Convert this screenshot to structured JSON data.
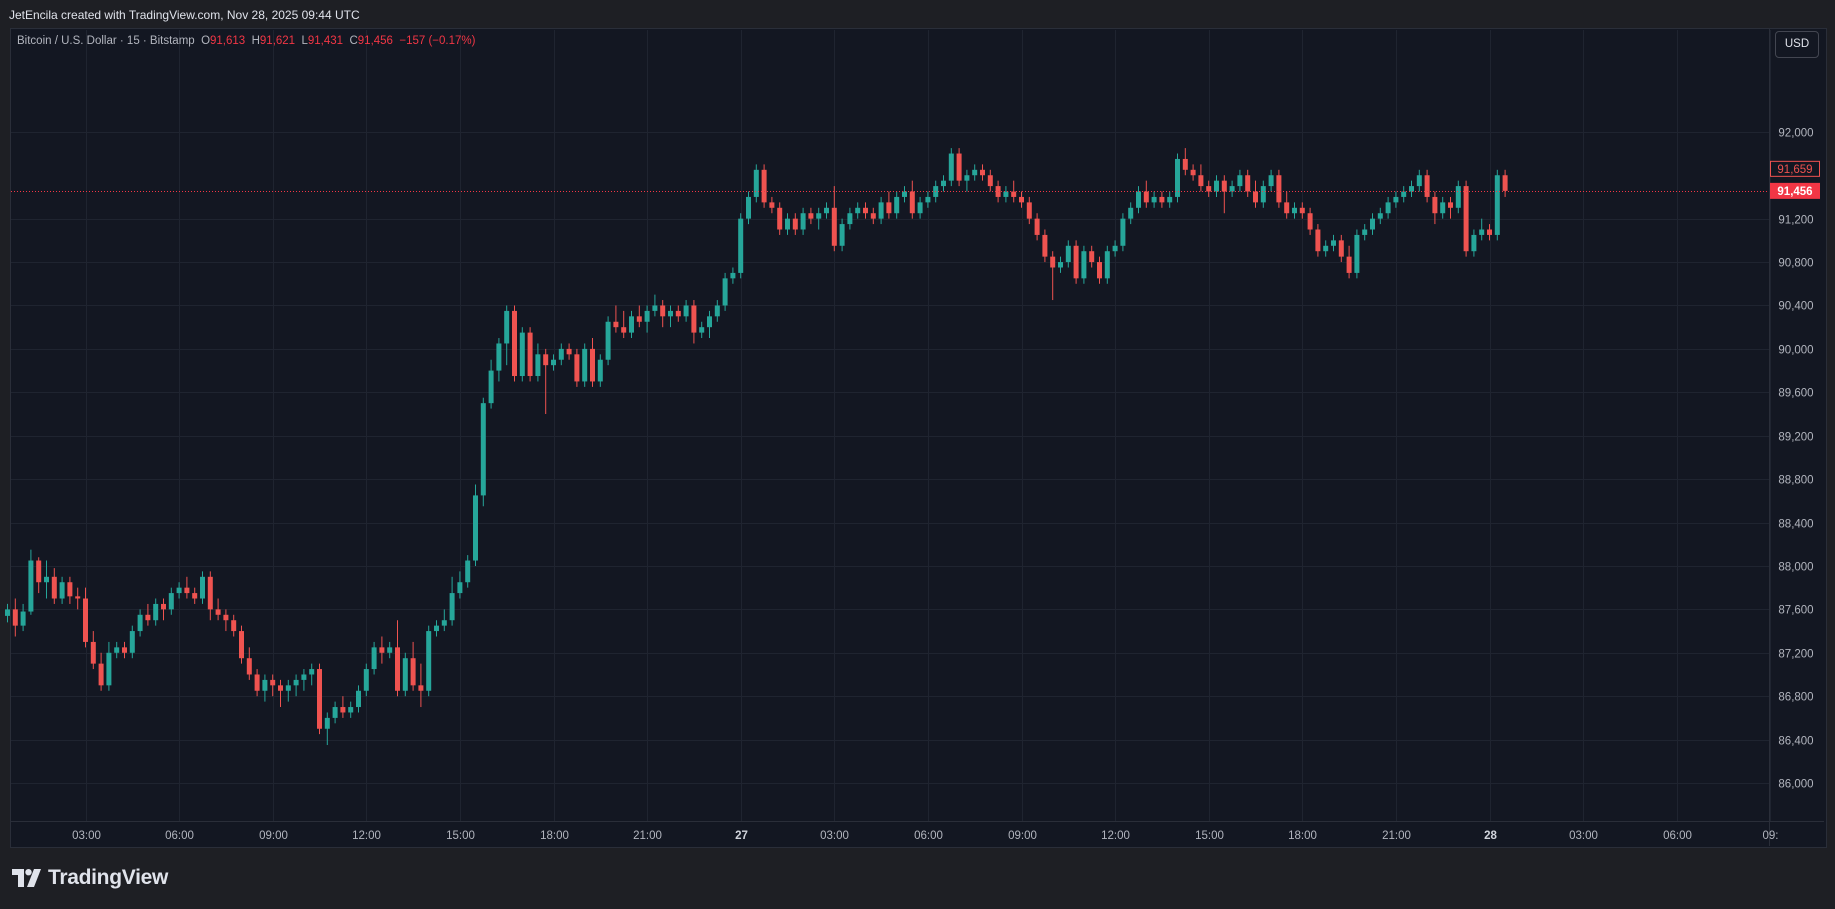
{
  "header": {
    "credit": "JetEncila created with TradingView.com, Nov 28, 2025 09:44 UTC"
  },
  "legend": {
    "symbol": "Bitcoin / U.S. Dollar · 15 · Bitstamp",
    "o_label": "O",
    "o_value": "91,613",
    "h_label": "H",
    "h_value": "91,621",
    "l_label": "L",
    "l_value": "91,431",
    "c_label": "C",
    "c_value": "91,456",
    "change": "−157 (−0.17%)"
  },
  "currency_button": "USD",
  "brand": {
    "name": "TradingView",
    "icon": "tradingview-logo-icon"
  },
  "colors": {
    "up": "#26a69a",
    "down": "#ef5350",
    "background": "#131722",
    "grid": "#1f2430",
    "last_price_bg": "#f23645"
  },
  "chart_data": {
    "type": "candlestick",
    "interval": "15",
    "ylim": [
      85650,
      92800
    ],
    "yticks": [
      "86,000",
      "86,400",
      "86,800",
      "87,200",
      "87,600",
      "88,000",
      "88,400",
      "88,800",
      "89,200",
      "89,600",
      "90,000",
      "90,400",
      "90,800",
      "91,200",
      "92,000"
    ],
    "xticks": [
      {
        "label": "03:00",
        "hours": 3
      },
      {
        "label": "06:00",
        "hours": 6
      },
      {
        "label": "09:00",
        "hours": 9
      },
      {
        "label": "12:00",
        "hours": 12
      },
      {
        "label": "15:00",
        "hours": 15
      },
      {
        "label": "18:00",
        "hours": 18
      },
      {
        "label": "21:00",
        "hours": 21
      },
      {
        "label": "27",
        "hours": 24,
        "day": true
      },
      {
        "label": "03:00",
        "hours": 27
      },
      {
        "label": "06:00",
        "hours": 30
      },
      {
        "label": "09:00",
        "hours": 33
      },
      {
        "label": "12:00",
        "hours": 36
      },
      {
        "label": "15:00",
        "hours": 39
      },
      {
        "label": "18:00",
        "hours": 42
      },
      {
        "label": "21:00",
        "hours": 45
      },
      {
        "label": "28",
        "hours": 48,
        "day": true
      },
      {
        "label": "03:00",
        "hours": 51
      },
      {
        "label": "06:00",
        "hours": 54
      },
      {
        "label": "09:",
        "hours": 57
      }
    ],
    "price_labels": [
      {
        "value": "91,659",
        "price": 91659,
        "style": "outline"
      },
      {
        "value": "91,456",
        "price": 91456,
        "style": "filled"
      }
    ],
    "last_price": 91456,
    "candle_interval_hours": 0.25,
    "series_start_hours": 0.5,
    "candles": [
      [
        87540,
        87650,
        87480,
        87600
      ],
      [
        87600,
        87700,
        87350,
        87450
      ],
      [
        87450,
        87650,
        87400,
        87580
      ],
      [
        87580,
        88150,
        87550,
        88050
      ],
      [
        88050,
        88080,
        87750,
        87850
      ],
      [
        87850,
        88050,
        87700,
        87900
      ],
      [
        87900,
        87980,
        87650,
        87700
      ],
      [
        87700,
        87900,
        87650,
        87850
      ],
      [
        87850,
        87900,
        87650,
        87720
      ],
      [
        87720,
        87800,
        87600,
        87700
      ],
      [
        87700,
        87800,
        87250,
        87300
      ],
      [
        87300,
        87400,
        87050,
        87100
      ],
      [
        87100,
        87200,
        86850,
        86900
      ],
      [
        86900,
        87300,
        86850,
        87200
      ],
      [
        87200,
        87300,
        87150,
        87250
      ],
      [
        87250,
        87300,
        87150,
        87200
      ],
      [
        87200,
        87450,
        87150,
        87400
      ],
      [
        87400,
        87600,
        87350,
        87550
      ],
      [
        87550,
        87650,
        87450,
        87500
      ],
      [
        87500,
        87700,
        87450,
        87650
      ],
      [
        87650,
        87700,
        87500,
        87600
      ],
      [
        87600,
        87800,
        87550,
        87750
      ],
      [
        87750,
        87850,
        87700,
        87800
      ],
      [
        87800,
        87900,
        87700,
        87750
      ],
      [
        87750,
        87800,
        87650,
        87700
      ],
      [
        87700,
        87950,
        87650,
        87900
      ],
      [
        87900,
        87950,
        87500,
        87600
      ],
      [
        87600,
        87700,
        87500,
        87550
      ],
      [
        87550,
        87600,
        87400,
        87500
      ],
      [
        87500,
        87550,
        87350,
        87400
      ],
      [
        87400,
        87450,
        87100,
        87150
      ],
      [
        87150,
        87250,
        86950,
        87000
      ],
      [
        87000,
        87050,
        86800,
        86850
      ],
      [
        86850,
        87000,
        86750,
        86950
      ],
      [
        86950,
        87000,
        86800,
        86900
      ],
      [
        86900,
        86950,
        86700,
        86850
      ],
      [
        86850,
        86950,
        86750,
        86900
      ],
      [
        86900,
        87000,
        86800,
        86950
      ],
      [
        86950,
        87050,
        86850,
        87000
      ],
      [
        87000,
        87100,
        86900,
        87050
      ],
      [
        87050,
        87100,
        86450,
        86500
      ],
      [
        86500,
        86650,
        86350,
        86600
      ],
      [
        86600,
        86750,
        86550,
        86700
      ],
      [
        86700,
        86800,
        86600,
        86650
      ],
      [
        86650,
        86750,
        86600,
        86700
      ],
      [
        86700,
        86900,
        86650,
        86850
      ],
      [
        86850,
        87100,
        86800,
        87050
      ],
      [
        87050,
        87300,
        87000,
        87250
      ],
      [
        87250,
        87350,
        87100,
        87200
      ],
      [
        87200,
        87300,
        87150,
        87250
      ],
      [
        87250,
        87500,
        86800,
        86850
      ],
      [
        86850,
        87200,
        86800,
        87150
      ],
      [
        87150,
        87300,
        86850,
        86900
      ],
      [
        86900,
        87100,
        86700,
        86850
      ],
      [
        86850,
        87450,
        86800,
        87400
      ],
      [
        87400,
        87500,
        87350,
        87450
      ],
      [
        87450,
        87600,
        87400,
        87500
      ],
      [
        87500,
        87900,
        87450,
        87750
      ],
      [
        87750,
        87950,
        87700,
        87850
      ],
      [
        87850,
        88100,
        87800,
        88050
      ],
      [
        88050,
        88750,
        88000,
        88650
      ],
      [
        88650,
        89550,
        88550,
        89500
      ],
      [
        89500,
        89900,
        89450,
        89800
      ],
      [
        89800,
        90100,
        89700,
        90050
      ],
      [
        90050,
        90400,
        89850,
        90350
      ],
      [
        90350,
        90400,
        89700,
        89750
      ],
      [
        89750,
        90200,
        89700,
        90150
      ],
      [
        90150,
        90200,
        89700,
        89750
      ],
      [
        89750,
        90050,
        89700,
        89950
      ],
      [
        89950,
        90000,
        89400,
        89850
      ],
      [
        89850,
        89950,
        89800,
        89900
      ],
      [
        89900,
        90050,
        89850,
        90000
      ],
      [
        90000,
        90050,
        89900,
        89950
      ],
      [
        89950,
        90000,
        89650,
        89700
      ],
      [
        89700,
        90050,
        89650,
        90000
      ],
      [
        90000,
        90100,
        89650,
        89700
      ],
      [
        89700,
        89950,
        89650,
        89900
      ],
      [
        89900,
        90300,
        89850,
        90250
      ],
      [
        90250,
        90400,
        90150,
        90200
      ],
      [
        90200,
        90350,
        90100,
        90150
      ],
      [
        90150,
        90350,
        90100,
        90300
      ],
      [
        90300,
        90400,
        90200,
        90250
      ],
      [
        90250,
        90400,
        90150,
        90350
      ],
      [
        90350,
        90500,
        90300,
        90400
      ],
      [
        90400,
        90450,
        90200,
        90300
      ],
      [
        90300,
        90400,
        90200,
        90350
      ],
      [
        90350,
        90400,
        90250,
        90300
      ],
      [
        90300,
        90450,
        90250,
        90400
      ],
      [
        90400,
        90450,
        90050,
        90150
      ],
      [
        90150,
        90250,
        90100,
        90200
      ],
      [
        90200,
        90350,
        90100,
        90300
      ],
      [
        90300,
        90450,
        90250,
        90400
      ],
      [
        90400,
        90700,
        90350,
        90650
      ],
      [
        90650,
        90750,
        90600,
        90700
      ],
      [
        90700,
        91250,
        90650,
        91200
      ],
      [
        91200,
        91450,
        91150,
        91400
      ],
      [
        91400,
        91700,
        91350,
        91650
      ],
      [
        91650,
        91700,
        91300,
        91350
      ],
      [
        91350,
        91400,
        91250,
        91300
      ],
      [
        91300,
        91350,
        91050,
        91100
      ],
      [
        91100,
        91250,
        91050,
        91200
      ],
      [
        91200,
        91250,
        91050,
        91100
      ],
      [
        91100,
        91300,
        91050,
        91250
      ],
      [
        91250,
        91300,
        91150,
        91200
      ],
      [
        91200,
        91300,
        91100,
        91250
      ],
      [
        91250,
        91350,
        91200,
        91300
      ],
      [
        91300,
        91500,
        90900,
        90950
      ],
      [
        90950,
        91200,
        90900,
        91150
      ],
      [
        91150,
        91300,
        91100,
        91250
      ],
      [
        91250,
        91350,
        91200,
        91300
      ],
      [
        91300,
        91350,
        91200,
        91250
      ],
      [
        91250,
        91300,
        91150,
        91200
      ],
      [
        91200,
        91400,
        91150,
        91350
      ],
      [
        91350,
        91450,
        91200,
        91250
      ],
      [
        91250,
        91450,
        91200,
        91400
      ],
      [
        91400,
        91500,
        91350,
        91450
      ],
      [
        91450,
        91550,
        91200,
        91250
      ],
      [
        91250,
        91400,
        91200,
        91350
      ],
      [
        91350,
        91450,
        91300,
        91400
      ],
      [
        91400,
        91550,
        91350,
        91500
      ],
      [
        91500,
        91600,
        91450,
        91550
      ],
      [
        91550,
        91850,
        91500,
        91800
      ],
      [
        91800,
        91850,
        91500,
        91550
      ],
      [
        91550,
        91650,
        91450,
        91600
      ],
      [
        91600,
        91700,
        91550,
        91650
      ],
      [
        91650,
        91700,
        91550,
        91600
      ],
      [
        91600,
        91650,
        91450,
        91500
      ],
      [
        91500,
        91550,
        91350,
        91400
      ],
      [
        91400,
        91500,
        91350,
        91450
      ],
      [
        91450,
        91550,
        91350,
        91400
      ],
      [
        91400,
        91450,
        91300,
        91350
      ],
      [
        91350,
        91400,
        91150,
        91200
      ],
      [
        91200,
        91250,
        91000,
        91050
      ],
      [
        91050,
        91100,
        90800,
        90850
      ],
      [
        90850,
        90900,
        90450,
        90750
      ],
      [
        90750,
        90850,
        90700,
        90800
      ],
      [
        90800,
        91000,
        90750,
        90950
      ],
      [
        90950,
        91000,
        90600,
        90650
      ],
      [
        90650,
        90950,
        90600,
        90900
      ],
      [
        90900,
        90950,
        90750,
        90800
      ],
      [
        90800,
        90850,
        90600,
        90650
      ],
      [
        90650,
        90950,
        90600,
        90900
      ],
      [
        90900,
        91000,
        90850,
        90950
      ],
      [
        90950,
        91250,
        90900,
        91200
      ],
      [
        91200,
        91350,
        91150,
        91300
      ],
      [
        91300,
        91500,
        91250,
        91450
      ],
      [
        91450,
        91550,
        91300,
        91350
      ],
      [
        91350,
        91450,
        91300,
        91400
      ],
      [
        91400,
        91450,
        91300,
        91350
      ],
      [
        91350,
        91450,
        91300,
        91400
      ],
      [
        91400,
        91800,
        91350,
        91750
      ],
      [
        91750,
        91850,
        91600,
        91650
      ],
      [
        91650,
        91700,
        91550,
        91600
      ],
      [
        91600,
        91700,
        91450,
        91500
      ],
      [
        91500,
        91550,
        91400,
        91450
      ],
      [
        91450,
        91600,
        91400,
        91550
      ],
      [
        91550,
        91600,
        91250,
        91450
      ],
      [
        91450,
        91550,
        91400,
        91500
      ],
      [
        91500,
        91650,
        91450,
        91600
      ],
      [
        91600,
        91650,
        91400,
        91450
      ],
      [
        91450,
        91550,
        91300,
        91350
      ],
      [
        91350,
        91550,
        91300,
        91500
      ],
      [
        91500,
        91650,
        91450,
        91600
      ],
      [
        91600,
        91650,
        91300,
        91350
      ],
      [
        91350,
        91450,
        91200,
        91250
      ],
      [
        91250,
        91350,
        91200,
        91300
      ],
      [
        91300,
        91350,
        91200,
        91250
      ],
      [
        91250,
        91300,
        91050,
        91100
      ],
      [
        91100,
        91150,
        90850,
        90900
      ],
      [
        90900,
        91000,
        90850,
        90950
      ],
      [
        90950,
        91050,
        90900,
        91000
      ],
      [
        91000,
        91050,
        90800,
        90850
      ],
      [
        90850,
        90950,
        90650,
        90700
      ],
      [
        90700,
        91100,
        90650,
        91050
      ],
      [
        91050,
        91150,
        91000,
        91100
      ],
      [
        91100,
        91250,
        91050,
        91200
      ],
      [
        91200,
        91300,
        91150,
        91250
      ],
      [
        91250,
        91400,
        91200,
        91350
      ],
      [
        91350,
        91450,
        91300,
        91400
      ],
      [
        91400,
        91500,
        91350,
        91450
      ],
      [
        91450,
        91550,
        91400,
        91500
      ],
      [
        91500,
        91650,
        91450,
        91600
      ],
      [
        91600,
        91650,
        91350,
        91400
      ],
      [
        91400,
        91450,
        91150,
        91250
      ],
      [
        91250,
        91400,
        91200,
        91350
      ],
      [
        91350,
        91400,
        91200,
        91300
      ],
      [
        91300,
        91550,
        91250,
        91500
      ],
      [
        91500,
        91550,
        90850,
        90900
      ],
      [
        90900,
        91100,
        90850,
        91050
      ],
      [
        91050,
        91200,
        91000,
        91100
      ],
      [
        91100,
        91150,
        91000,
        91050
      ],
      [
        91050,
        91650,
        91000,
        91600
      ],
      [
        91600,
        91650,
        91400,
        91456
      ]
    ]
  }
}
